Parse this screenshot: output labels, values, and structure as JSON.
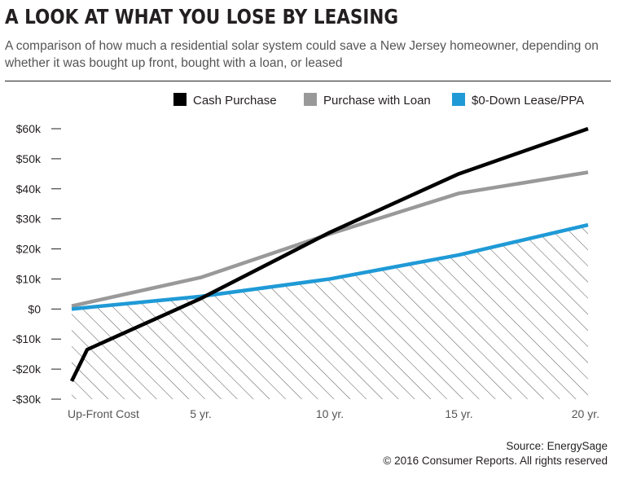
{
  "header": {
    "title": "A LOOK AT WHAT YOU LOSE BY LEASING",
    "subtitle": "A comparison of how much a residential solar system could save a New Jersey homeowner, depending on whether it was bought up front, bought with a loan, or leased"
  },
  "footer": {
    "source": "Source: EnergySage",
    "copyright": "© 2016 Consumer Reports. All rights reserved"
  },
  "chart_data": {
    "type": "line",
    "title": "A LOOK AT WHAT YOU LOSE BY LEASING",
    "categories": [
      "Up-Front Cost",
      "5 yr.",
      "10 yr.",
      "15 yr.",
      "20 yr."
    ],
    "y_ticks": [
      -30000,
      -20000,
      -10000,
      0,
      10000,
      20000,
      30000,
      40000,
      50000,
      60000
    ],
    "y_tick_labels": [
      "-$30k",
      "-$20k",
      "-$10k",
      "$0",
      "$10k",
      "$20k",
      "$30k",
      "$40k",
      "$50k",
      "$60k"
    ],
    "ylim": [
      -30000,
      60000
    ],
    "legend_position": "top-right",
    "grid": false,
    "series": [
      {
        "name": "Cash Purchase",
        "color": "#000000",
        "x": [
          0,
          0.6,
          5,
          10,
          15,
          20
        ],
        "values": [
          -24000,
          -13500,
          3500,
          25500,
          45000,
          60000
        ]
      },
      {
        "name": "Purchase with Loan",
        "color": "#999999",
        "x": [
          0,
          5,
          10,
          15,
          20
        ],
        "values": [
          1000,
          10500,
          25000,
          38500,
          45500
        ]
      },
      {
        "name": "$0-Down Lease/PPA",
        "color": "#1f9ad6",
        "x": [
          0,
          5,
          10,
          15,
          20
        ],
        "values": [
          0,
          4200,
          10000,
          18000,
          28000
        ]
      }
    ],
    "shaded_area": {
      "series": "$0-Down Lease/PPA",
      "pattern": "diagonal-hatch",
      "to": -30000
    }
  }
}
